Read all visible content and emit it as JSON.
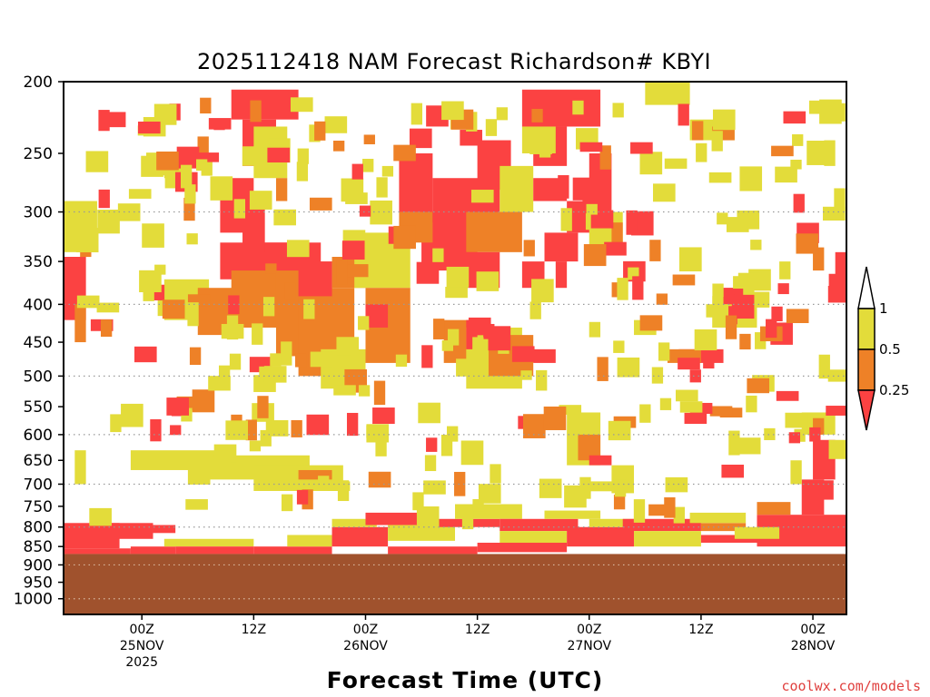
{
  "chart_data": {
    "type": "heatmap",
    "title": "2025112418 NAM Forecast Richardson# KBYI",
    "xlabel": "Forecast Time (UTC)",
    "ylabel": "",
    "credit": "coolwx.com/models",
    "y_axis": {
      "scale": "log-pressure",
      "reversed": true,
      "range": [
        200,
        1050
      ],
      "ticks": [
        200,
        250,
        300,
        350,
        400,
        450,
        500,
        550,
        600,
        650,
        700,
        750,
        800,
        850,
        900,
        950,
        1000
      ],
      "dotted_grid_at": [
        300,
        400,
        500,
        600,
        700,
        800,
        900,
        1000
      ]
    },
    "x_axis": {
      "range_hours": [
        -7,
        63
      ],
      "ticks": [
        {
          "hour": 0,
          "label": "00Z",
          "sub": "25NOV",
          "sub2": "2025"
        },
        {
          "hour": 10,
          "label": "12Z",
          "sub": "",
          "sub2": ""
        },
        {
          "hour": 20,
          "label": "00Z",
          "sub": "26NOV",
          "sub2": ""
        },
        {
          "hour": 30,
          "label": "12Z",
          "sub": "",
          "sub2": ""
        },
        {
          "hour": 40,
          "label": "00Z",
          "sub": "27NOV",
          "sub2": ""
        },
        {
          "hour": 50,
          "label": "12Z",
          "sub": "",
          "sub2": ""
        },
        {
          "hour": 60,
          "label": "00Z",
          "sub": "28NOV",
          "sub2": ""
        }
      ]
    },
    "legend": {
      "position": "right",
      "labels": [
        "1",
        "0.5",
        "0.25"
      ],
      "bins": [
        {
          "range": ">1",
          "color": "#ffffff"
        },
        {
          "range": "0.5-1",
          "color": "#e3dc3a"
        },
        {
          "range": "0.25-0.5",
          "color": "#ee8127"
        },
        {
          "range": "<0.25",
          "color": "#fb4242"
        }
      ]
    },
    "ground": {
      "color": "#a0522d",
      "from_pressure": 870
    },
    "colors": {
      "yellow": "#e3dc3a",
      "orange": "#ee8127",
      "red": "#fb4242"
    },
    "regions": [
      {
        "c": "red",
        "t0": -7,
        "t1": -1,
        "p0": 855,
        "p1": 870
      },
      {
        "c": "red",
        "t0": -7,
        "t1": -2,
        "p0": 790,
        "p1": 855
      },
      {
        "c": "red",
        "t0": -1,
        "t1": 3,
        "p0": 850,
        "p1": 870
      },
      {
        "c": "red",
        "t0": -3,
        "t1": 1,
        "p0": 790,
        "p1": 830
      },
      {
        "c": "red",
        "t0": 1,
        "t1": 3,
        "p0": 795,
        "p1": 815
      },
      {
        "c": "yellow",
        "t0": 2,
        "t1": 10,
        "p0": 830,
        "p1": 850
      },
      {
        "c": "red",
        "t0": 3,
        "t1": 10,
        "p0": 850,
        "p1": 870
      },
      {
        "c": "red",
        "t0": 10,
        "t1": 17,
        "p0": 850,
        "p1": 870
      },
      {
        "c": "yellow",
        "t0": 13,
        "t1": 17,
        "p0": 820,
        "p1": 850
      },
      {
        "c": "red",
        "t0": 17,
        "t1": 22,
        "p0": 800,
        "p1": 850
      },
      {
        "c": "yellow",
        "t0": 17,
        "t1": 21,
        "p0": 780,
        "p1": 800
      },
      {
        "c": "red",
        "t0": 20,
        "t1": 25,
        "p0": 765,
        "p1": 795
      },
      {
        "c": "yellow",
        "t0": 22,
        "t1": 28,
        "p0": 795,
        "p1": 835
      },
      {
        "c": "red",
        "t0": 22,
        "t1": 30,
        "p0": 850,
        "p1": 870
      },
      {
        "c": "red",
        "t0": 25,
        "t1": 32,
        "p0": 780,
        "p1": 800
      },
      {
        "c": "yellow",
        "t0": 28,
        "t1": 34,
        "p0": 745,
        "p1": 780
      },
      {
        "c": "red",
        "t0": 30,
        "t1": 38,
        "p0": 840,
        "p1": 865
      },
      {
        "c": "red",
        "t0": 32,
        "t1": 39,
        "p0": 780,
        "p1": 810
      },
      {
        "c": "yellow",
        "t0": 32,
        "t1": 38,
        "p0": 810,
        "p1": 840
      },
      {
        "c": "yellow",
        "t0": 36,
        "t1": 41,
        "p0": 760,
        "p1": 780
      },
      {
        "c": "red",
        "t0": 38,
        "t1": 44,
        "p0": 800,
        "p1": 850
      },
      {
        "c": "yellow",
        "t0": 40,
        "t1": 45,
        "p0": 780,
        "p1": 800
      },
      {
        "c": "red",
        "t0": 43,
        "t1": 50,
        "p0": 780,
        "p1": 810
      },
      {
        "c": "yellow",
        "t0": 44,
        "t1": 50,
        "p0": 810,
        "p1": 850
      },
      {
        "c": "orange",
        "t0": 50,
        "t1": 54,
        "p0": 790,
        "p1": 810
      },
      {
        "c": "yellow",
        "t0": 49,
        "t1": 54,
        "p0": 765,
        "p1": 790
      },
      {
        "c": "red",
        "t0": 50,
        "t1": 56,
        "p0": 820,
        "p1": 840
      },
      {
        "c": "red",
        "t0": 55,
        "t1": 63,
        "p0": 770,
        "p1": 850
      },
      {
        "c": "orange",
        "t0": 55,
        "t1": 58,
        "p0": 740,
        "p1": 770
      },
      {
        "c": "yellow",
        "t0": 53,
        "t1": 57,
        "p0": 800,
        "p1": 830
      },
      {
        "c": "red",
        "t0": 59,
        "t1": 61,
        "p0": 690,
        "p1": 770
      },
      {
        "c": "red",
        "t0": 60,
        "t1": 62,
        "p0": 610,
        "p1": 690
      },
      {
        "c": "yellow",
        "t0": 58,
        "t1": 59,
        "p0": 650,
        "p1": 700
      },
      {
        "c": "yellow",
        "t0": -6,
        "t1": -5,
        "p0": 630,
        "p1": 700
      },
      {
        "c": "yellow",
        "t0": -1,
        "t1": 8,
        "p0": 630,
        "p1": 670
      },
      {
        "c": "yellow",
        "t0": 5,
        "t1": 15,
        "p0": 640,
        "p1": 690
      },
      {
        "c": "yellow",
        "t0": 10,
        "t1": 18,
        "p0": 660,
        "p1": 715
      },
      {
        "c": "orange",
        "t0": 14,
        "t1": 17,
        "p0": 670,
        "p1": 690
      },
      {
        "c": "yellow",
        "t0": -7,
        "t1": -4,
        "p0": 290,
        "p1": 340
      },
      {
        "c": "red",
        "t0": -7,
        "t1": -5,
        "p0": 345,
        "p1": 420
      },
      {
        "c": "orange",
        "t0": -6,
        "t1": -5,
        "p0": 400,
        "p1": 450
      },
      {
        "c": "yellow",
        "t0": 2,
        "t1": 6,
        "p0": 370,
        "p1": 420
      },
      {
        "c": "orange",
        "t0": 5,
        "t1": 9,
        "p0": 380,
        "p1": 440
      },
      {
        "c": "yellow",
        "t0": 2,
        "t1": 4,
        "p0": 250,
        "p1": 270
      },
      {
        "c": "red",
        "t0": 7,
        "t1": 13,
        "p0": 330,
        "p1": 370
      },
      {
        "c": "orange",
        "t0": 8,
        "t1": 14,
        "p0": 360,
        "p1": 430
      },
      {
        "c": "orange",
        "t0": 12,
        "t1": 17,
        "p0": 350,
        "p1": 470
      },
      {
        "c": "red",
        "t0": 11,
        "t1": 16,
        "p0": 330,
        "p1": 360
      },
      {
        "c": "orange",
        "t0": 14,
        "t1": 19,
        "p0": 380,
        "p1": 500
      },
      {
        "c": "red",
        "t0": 14,
        "t1": 17,
        "p0": 350,
        "p1": 390
      },
      {
        "c": "yellow",
        "t0": 16,
        "t1": 20,
        "p0": 460,
        "p1": 520
      },
      {
        "c": "orange",
        "t0": 17,
        "t1": 20,
        "p0": 345,
        "p1": 380
      },
      {
        "c": "yellow",
        "t0": 19,
        "t1": 24,
        "p0": 320,
        "p1": 380
      },
      {
        "c": "orange",
        "t0": 20,
        "t1": 24,
        "p0": 380,
        "p1": 480
      },
      {
        "c": "red",
        "t0": 20,
        "t1": 22,
        "p0": 400,
        "p1": 430
      },
      {
        "c": "red",
        "t0": 8,
        "t1": 14,
        "p0": 205,
        "p1": 225
      },
      {
        "c": "red",
        "t0": 9,
        "t1": 12,
        "p0": 225,
        "p1": 260
      },
      {
        "c": "red",
        "t0": 7,
        "t1": 10,
        "p0": 270,
        "p1": 320
      },
      {
        "c": "red",
        "t0": 9,
        "t1": 11,
        "p0": 290,
        "p1": 340
      },
      {
        "c": "yellow",
        "t0": 10,
        "t1": 13,
        "p0": 230,
        "p1": 270
      },
      {
        "c": "orange",
        "t0": 12,
        "t1": 13,
        "p0": 270,
        "p1": 290
      },
      {
        "c": "red",
        "t0": 23,
        "t1": 26,
        "p0": 250,
        "p1": 300
      },
      {
        "c": "red",
        "t0": 25,
        "t1": 30,
        "p0": 300,
        "p1": 360
      },
      {
        "c": "orange",
        "t0": 23,
        "t1": 26,
        "p0": 300,
        "p1": 330
      },
      {
        "c": "red",
        "t0": 26,
        "t1": 32,
        "p0": 270,
        "p1": 310
      },
      {
        "c": "orange",
        "t0": 29,
        "t1": 34,
        "p0": 300,
        "p1": 340
      },
      {
        "c": "red",
        "t0": 28,
        "t1": 32,
        "p0": 340,
        "p1": 380
      },
      {
        "c": "red",
        "t0": 30,
        "t1": 33,
        "p0": 240,
        "p1": 280
      },
      {
        "c": "yellow",
        "t0": 32,
        "t1": 35,
        "p0": 260,
        "p1": 300
      },
      {
        "c": "red",
        "t0": 34,
        "t1": 41,
        "p0": 205,
        "p1": 230
      },
      {
        "c": "red",
        "t0": 35,
        "t1": 38,
        "p0": 230,
        "p1": 260
      },
      {
        "c": "red",
        "t0": 35,
        "t1": 38,
        "p0": 270,
        "p1": 290
      },
      {
        "c": "yellow",
        "t0": 34,
        "t1": 37,
        "p0": 230,
        "p1": 250
      },
      {
        "c": "red",
        "t0": 36,
        "t1": 39,
        "p0": 320,
        "p1": 350
      },
      {
        "c": "red",
        "t0": 38,
        "t1": 41,
        "p0": 290,
        "p1": 320
      },
      {
        "c": "red",
        "t0": 40,
        "t1": 42,
        "p0": 250,
        "p1": 300
      },
      {
        "c": "yellow",
        "t0": 40,
        "t1": 43,
        "p0": 300,
        "p1": 340
      },
      {
        "c": "orange",
        "t0": 42,
        "t1": 43,
        "p0": 310,
        "p1": 330
      },
      {
        "c": "red",
        "t0": 34,
        "t1": 36,
        "p0": 350,
        "p1": 380
      },
      {
        "c": "red",
        "t0": 37,
        "t1": 38,
        "p0": 350,
        "p1": 380
      },
      {
        "c": "orange",
        "t0": 27,
        "t1": 31,
        "p0": 420,
        "p1": 480
      },
      {
        "c": "yellow",
        "t0": 29,
        "t1": 34,
        "p0": 430,
        "p1": 520
      },
      {
        "c": "orange",
        "t0": 31,
        "t1": 35,
        "p0": 440,
        "p1": 500
      },
      {
        "c": "red",
        "t0": 35,
        "t1": 37,
        "p0": 460,
        "p1": 480
      },
      {
        "c": "red",
        "t0": 29,
        "t1": 30,
        "p0": 420,
        "p1": 460
      },
      {
        "c": "orange",
        "t0": 34,
        "t1": 35,
        "p0": 460,
        "p1": 480
      },
      {
        "c": "yellow",
        "t0": 38,
        "t1": 41,
        "p0": 560,
        "p1": 660
      },
      {
        "c": "orange",
        "t0": 39,
        "t1": 41,
        "p0": 600,
        "p1": 650
      },
      {
        "c": "red",
        "t0": 40,
        "t1": 42,
        "p0": 640,
        "p1": 660
      },
      {
        "c": "yellow",
        "t0": 42,
        "t1": 44,
        "p0": 660,
        "p1": 720
      },
      {
        "c": "red",
        "t0": 48,
        "t1": 52,
        "p0": 460,
        "p1": 480
      },
      {
        "c": "orange",
        "t0": 47,
        "t1": 50,
        "p0": 460,
        "p1": 480
      },
      {
        "c": "red",
        "t0": 49,
        "t1": 50,
        "p0": 490,
        "p1": 510
      },
      {
        "c": "red",
        "t0": 52,
        "t1": 54,
        "p0": 380,
        "p1": 420
      },
      {
        "c": "yellow",
        "t0": 51,
        "t1": 55,
        "p0": 390,
        "p1": 430
      },
      {
        "c": "red",
        "t0": 52,
        "t1": 53,
        "p0": 380,
        "p1": 400
      },
      {
        "c": "yellow",
        "t0": 44,
        "t1": 46,
        "p0": 420,
        "p1": 440
      },
      {
        "c": "yellow",
        "t0": 45,
        "t1": 49,
        "p0": 200,
        "p1": 215
      },
      {
        "c": "yellow",
        "t0": 49,
        "t1": 53,
        "p0": 225,
        "p1": 240
      },
      {
        "c": "orange",
        "t0": 51,
        "t1": 53,
        "p0": 230,
        "p1": 240
      },
      {
        "c": "yellow",
        "t0": 59,
        "t1": 62,
        "p0": 560,
        "p1": 600
      },
      {
        "c": "orange",
        "t0": 60,
        "t1": 61,
        "p0": 570,
        "p1": 600
      },
      {
        "c": "yellow",
        "t0": 61,
        "t1": 62,
        "p0": 240,
        "p1": 260
      },
      {
        "c": "orange",
        "t0": 60,
        "t1": 61,
        "p0": 335,
        "p1": 360
      },
      {
        "c": "yellow",
        "t0": 57,
        "t1": 58,
        "p0": 350,
        "p1": 370
      },
      {
        "c": "red",
        "t0": 62,
        "t1": 63,
        "p0": 340,
        "p1": 380
      }
    ],
    "scatter": {
      "seed": 7,
      "count": 320,
      "t_range": [
        -6,
        62
      ],
      "p_range": [
        210,
        760
      ],
      "color_weights": {
        "yellow": 0.5,
        "orange": 0.25,
        "red": 0.25
      }
    }
  }
}
